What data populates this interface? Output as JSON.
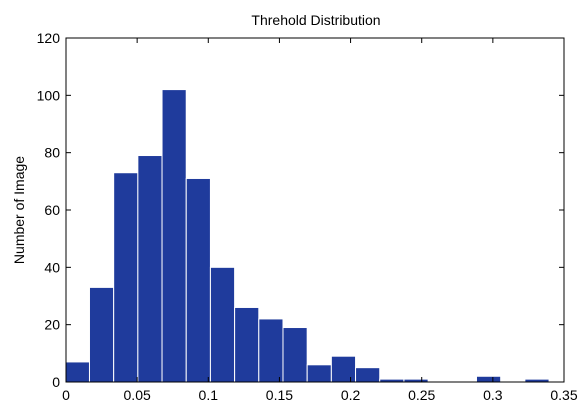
{
  "chart_data": {
    "type": "bar",
    "title": "Threhold Distribution",
    "xlabel": "",
    "ylabel": "Number of Image",
    "xlim": [
      0,
      0.35
    ],
    "ylim": [
      0,
      120
    ],
    "xticks": [
      0,
      0.05,
      0.1,
      0.15,
      0.2,
      0.25,
      0.3,
      0.35
    ],
    "xtick_labels": [
      "0",
      "0.05",
      "0.1",
      "0.15",
      "0.2",
      "0.25",
      "0.3",
      "0.35"
    ],
    "yticks": [
      0,
      20,
      40,
      60,
      80,
      100,
      120
    ],
    "ytick_labels": [
      "0",
      "20",
      "40",
      "60",
      "80",
      "100",
      "120"
    ],
    "bin_width": 0.017,
    "bin_centers": [
      0.008,
      0.025,
      0.042,
      0.059,
      0.076,
      0.093,
      0.11,
      0.127,
      0.144,
      0.161,
      0.178,
      0.195,
      0.212,
      0.229,
      0.246,
      0.263,
      0.28,
      0.297,
      0.314,
      0.331
    ],
    "values": [
      7,
      33,
      73,
      79,
      102,
      71,
      40,
      26,
      22,
      19,
      6,
      9,
      5,
      1,
      1,
      0,
      0,
      2,
      0,
      1
    ],
    "grid": false,
    "bar_color": "#1f3b9c",
    "bar_edge_color": "#ffffff"
  }
}
